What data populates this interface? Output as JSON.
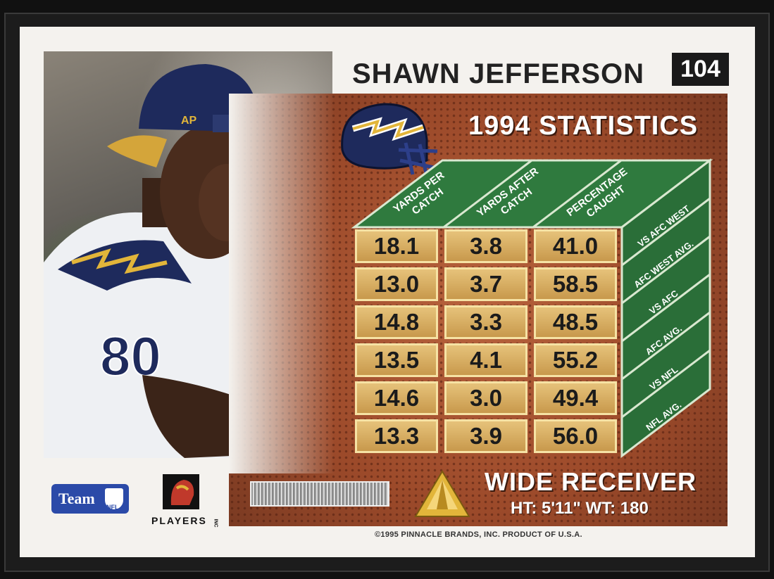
{
  "player": {
    "name": "SHAWN JEFFERSON",
    "card_number": "104",
    "position": "WIDE RECEIVER",
    "height_weight": "HT: 5'11\" WT: 180"
  },
  "stats": {
    "title": "1994 STATISTICS",
    "column_headers": [
      "YARDS PER CATCH",
      "YARDS AFTER CATCH",
      "PERCENTAGE CAUGHT"
    ],
    "row_labels": [
      "VS AFC WEST",
      "AFC WEST AVG.",
      "VS AFC",
      "AFC AVG.",
      "VS NFL",
      "NFL AVG."
    ],
    "rows": [
      [
        "18.1",
        "3.8",
        "41.0"
      ],
      [
        "13.0",
        "3.7",
        "58.5"
      ],
      [
        "14.8",
        "3.3",
        "48.5"
      ],
      [
        "13.5",
        "4.1",
        "55.2"
      ],
      [
        "14.6",
        "3.0",
        "49.4"
      ],
      [
        "13.3",
        "3.9",
        "56.0"
      ]
    ]
  },
  "logos": {
    "team_nfl": "Team",
    "nfl_shield": "NFL",
    "players_inc": "PLAYERS",
    "players_inc_suffix": "INC",
    "jersey_number": "80",
    "cap_logo": "AP"
  },
  "footer": {
    "copyright": "©1995 PINNACLE BRANDS, INC. PRODUCT OF U.S.A."
  },
  "colors": {
    "stat_green": "#2f7a3e",
    "cell_gold": "#d8b066",
    "football_brown": "#9c4a2a",
    "chargers_navy": "#1e2a5c"
  }
}
